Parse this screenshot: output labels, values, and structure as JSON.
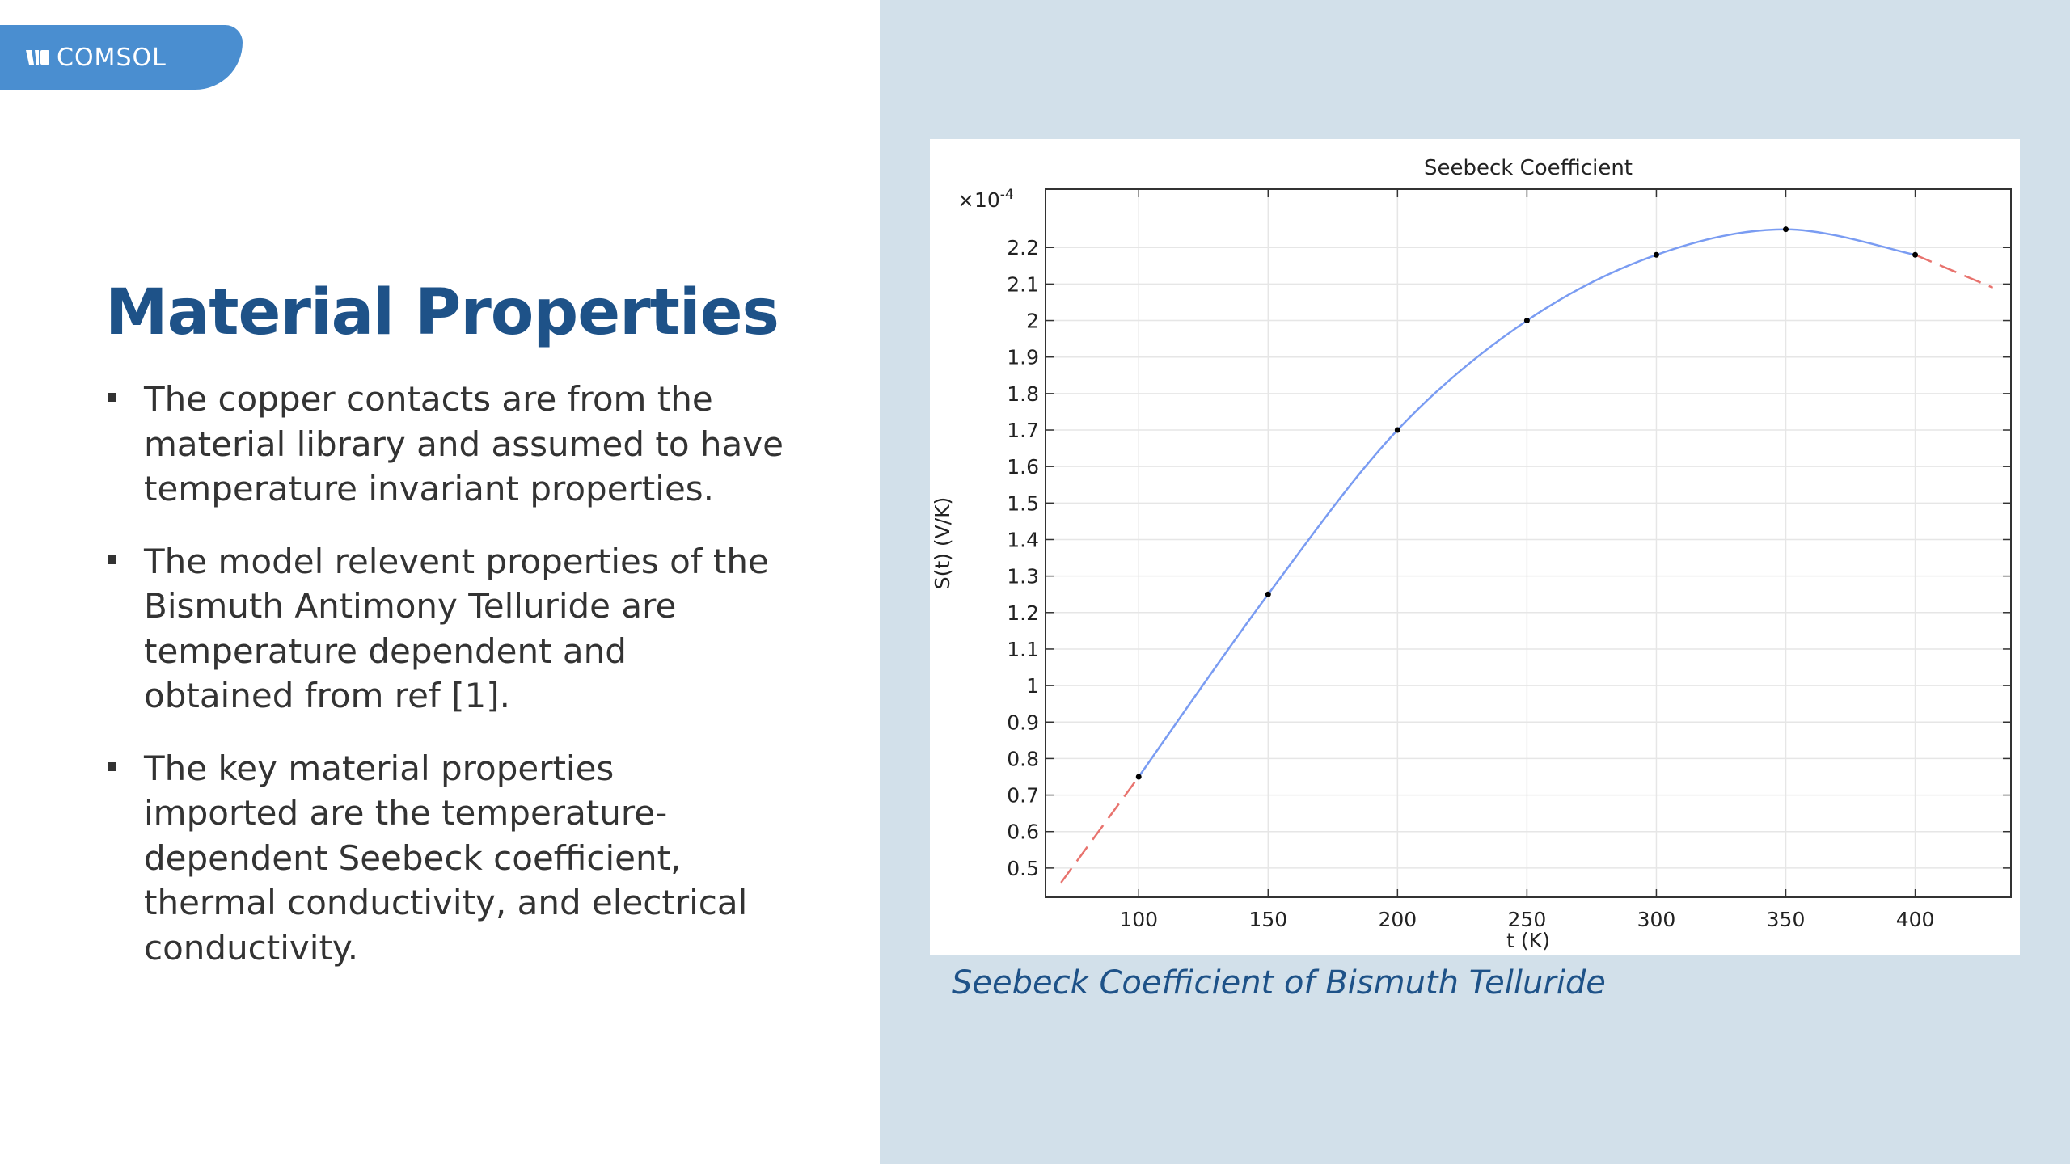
{
  "logo": {
    "text": "COMSOL",
    "brand_color": "#4a8ed0"
  },
  "slide": {
    "title": "Material Properties",
    "bullets": [
      {
        "lines": [
          "The copper contacts are from the",
          "material library and assumed to have",
          "temperature invariant properties."
        ]
      },
      {
        "lines": [
          "The model relevent properties of the",
          "Bismuth Antimony Telluride are",
          "temperature dependent and",
          "obtained from ref [1]."
        ]
      },
      {
        "lines": [
          "The key material properties",
          "imported are the temperature-",
          "dependent Seebeck coefficient,",
          "thermal conductivity, and electrical",
          "conductivity."
        ]
      }
    ]
  },
  "figure": {
    "caption": "Seebeck Coefficient of Bismuth Telluride"
  },
  "colors": {
    "title": "#1e5288",
    "body_text": "#333333",
    "right_panel_bg": "#d2e0ea",
    "interpolation_line": "#7a9cf2",
    "extrapolation_line": "#e8736e",
    "data_point": "#000000"
  },
  "chart_data": {
    "type": "line",
    "title": "Seebeck Coefficient",
    "xlabel": "t (K)",
    "ylabel": "S(t) (V/K)",
    "y_scale_label": "×10",
    "y_scale_exponent": "-4",
    "xlim": [
      64,
      437
    ],
    "ylim": [
      0.42,
      2.36
    ],
    "x_ticks": [
      100,
      150,
      200,
      250,
      300,
      350,
      400
    ],
    "y_ticks": [
      0.5,
      0.6,
      0.7,
      0.8,
      0.9,
      1,
      1.1,
      1.2,
      1.3,
      1.4,
      1.5,
      1.6,
      1.7,
      1.8,
      1.9,
      2,
      2.1,
      2.2
    ],
    "grid": true,
    "series": [
      {
        "style": "solid",
        "x": [
          100,
          150,
          200,
          250,
          300,
          350,
          400
        ],
        "y": [
          0.75,
          1.25,
          1.7,
          2.0,
          2.18,
          2.25,
          2.18
        ]
      }
    ],
    "extrapolation": {
      "style": "dashed",
      "left": {
        "x": [
          70,
          100
        ],
        "y": [
          0.46,
          0.75
        ]
      },
      "right": {
        "x": [
          400,
          430
        ],
        "y": [
          2.18,
          2.09
        ]
      }
    }
  }
}
